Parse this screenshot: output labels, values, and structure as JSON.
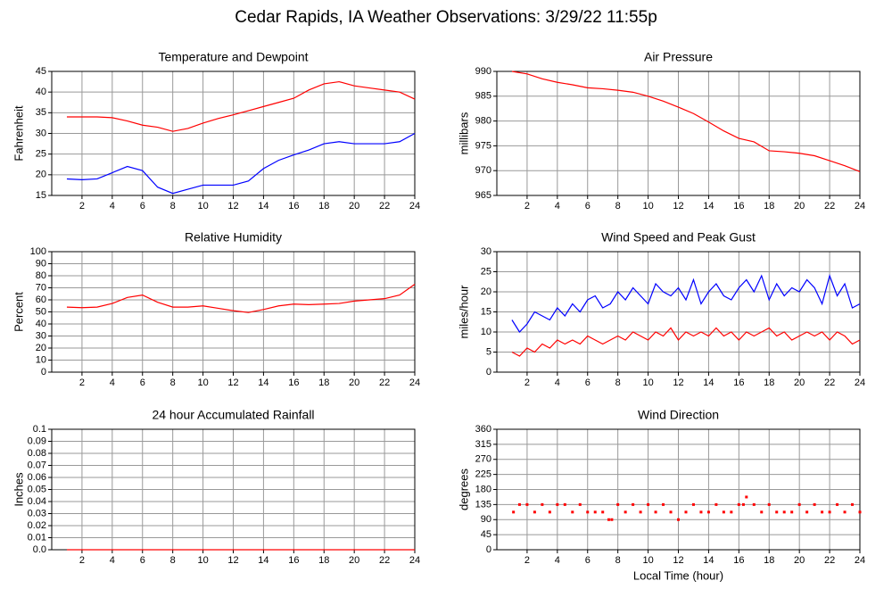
{
  "title": "Cedar Rapids, IA Weather Observations: 3/29/22 11:55p",
  "chart_data": [
    {
      "type": "line",
      "title": "Temperature and Dewpoint",
      "ylabel": "Fahrenheit",
      "x": [
        1,
        2,
        3,
        4,
        5,
        6,
        7,
        8,
        9,
        10,
        11,
        12,
        13,
        14,
        15,
        16,
        17,
        18,
        19,
        20,
        21,
        22,
        23,
        24
      ],
      "series": [
        {
          "color": "#ff0000",
          "values": [
            34,
            34,
            34,
            33.8,
            33,
            32,
            31.5,
            30.5,
            31.2,
            32.5,
            33.6,
            34.5,
            35.5,
            36.5,
            37.5,
            38.5,
            40.5,
            42,
            42.5,
            41.5,
            41,
            40.5,
            40,
            38.3
          ]
        },
        {
          "color": "#0000ff",
          "values": [
            19,
            18.8,
            19,
            20.5,
            22,
            21,
            17,
            15.5,
            16.5,
            17.5,
            17.5,
            17.5,
            18.5,
            21.5,
            23.5,
            24.8,
            26,
            27.5,
            28,
            27.5,
            27.5,
            27.5,
            28,
            30
          ]
        }
      ],
      "xlim": [
        0,
        24
      ],
      "xticks": [
        2,
        4,
        6,
        8,
        10,
        12,
        14,
        16,
        18,
        20,
        22,
        24
      ],
      "ylim": [
        15,
        45
      ],
      "yticks": [
        15,
        20,
        25,
        30,
        35,
        40,
        45
      ],
      "grid": true
    },
    {
      "type": "line",
      "title": "Air Pressure",
      "ylabel": "millibars",
      "x": [
        1,
        2,
        3,
        4,
        5,
        6,
        7,
        8,
        9,
        10,
        11,
        12,
        13,
        14,
        15,
        16,
        17,
        18,
        19,
        20,
        21,
        22,
        23,
        24
      ],
      "series": [
        {
          "color": "#ff0000",
          "values": [
            990,
            989.5,
            988.5,
            987.8,
            987.3,
            986.7,
            986.5,
            986.2,
            985.8,
            985,
            984,
            982.8,
            981.5,
            979.8,
            978,
            976.5,
            975.8,
            974,
            973.8,
            973.5,
            973,
            972,
            971,
            969.8
          ]
        }
      ],
      "xlim": [
        0,
        24
      ],
      "xticks": [
        2,
        4,
        6,
        8,
        10,
        12,
        14,
        16,
        18,
        20,
        22,
        24
      ],
      "ylim": [
        965,
        990
      ],
      "yticks": [
        965,
        970,
        975,
        980,
        985,
        990
      ],
      "grid": true
    },
    {
      "type": "line",
      "title": "Relative Humidity",
      "ylabel": "Percent",
      "x": [
        1,
        2,
        3,
        4,
        5,
        6,
        7,
        8,
        9,
        10,
        11,
        12,
        13,
        14,
        15,
        16,
        17,
        18,
        19,
        20,
        21,
        22,
        23,
        24
      ],
      "series": [
        {
          "color": "#ff0000",
          "values": [
            54,
            53.5,
            54,
            57,
            62,
            64,
            58,
            54,
            54,
            55,
            53,
            51,
            49.5,
            52,
            55,
            56.5,
            56,
            56.5,
            57,
            59,
            60,
            61,
            64,
            73
          ]
        }
      ],
      "xlim": [
        0,
        24
      ],
      "xticks": [
        2,
        4,
        6,
        8,
        10,
        12,
        14,
        16,
        18,
        20,
        22,
        24
      ],
      "ylim": [
        0,
        100
      ],
      "yticks": [
        0,
        10,
        20,
        30,
        40,
        50,
        60,
        70,
        80,
        90,
        100
      ],
      "grid": true
    },
    {
      "type": "line",
      "title": "Wind Speed and Peak Gust",
      "ylabel": "miles/hour",
      "x": [
        1,
        1.5,
        2,
        2.5,
        3,
        3.5,
        4,
        4.5,
        5,
        5.5,
        6,
        6.5,
        7,
        7.5,
        8,
        8.5,
        9,
        9.5,
        10,
        10.5,
        11,
        11.5,
        12,
        12.5,
        13,
        13.5,
        14,
        14.5,
        15,
        15.5,
        16,
        16.5,
        17,
        17.5,
        18,
        18.5,
        19,
        19.5,
        20,
        20.5,
        21,
        21.5,
        22,
        22.5,
        23,
        23.5,
        24
      ],
      "series": [
        {
          "color": "#0000ff",
          "values": [
            13,
            10,
            12,
            15,
            14,
            13,
            16,
            14,
            17,
            15,
            18,
            19,
            16,
            17,
            20,
            18,
            21,
            19,
            17,
            22,
            20,
            19,
            21,
            18,
            23,
            17,
            20,
            22,
            19,
            18,
            21,
            23,
            20,
            24,
            18,
            22,
            19,
            21,
            20,
            23,
            21,
            17,
            24,
            19,
            22,
            16,
            17
          ]
        },
        {
          "color": "#ff0000",
          "values": [
            5,
            4,
            6,
            5,
            7,
            6,
            8,
            7,
            8,
            7,
            9,
            8,
            7,
            8,
            9,
            8,
            10,
            9,
            8,
            10,
            9,
            11,
            8,
            10,
            9,
            10,
            9,
            11,
            9,
            10,
            8,
            10,
            9,
            10,
            11,
            9,
            10,
            8,
            9,
            10,
            9,
            10,
            8,
            10,
            9,
            7,
            8
          ]
        }
      ],
      "xlim": [
        0,
        24
      ],
      "xticks": [
        2,
        4,
        6,
        8,
        10,
        12,
        14,
        16,
        18,
        20,
        22,
        24
      ],
      "ylim": [
        0,
        30
      ],
      "yticks": [
        0,
        5,
        10,
        15,
        20,
        25,
        30
      ],
      "grid": true
    },
    {
      "type": "line",
      "title": "24 hour Accumulated Rainfall",
      "ylabel": "Inches",
      "x": [
        1,
        24
      ],
      "series": [
        {
          "color": "#ff0000",
          "values": [
            0,
            0
          ]
        }
      ],
      "xlim": [
        0,
        24
      ],
      "xticks": [
        2,
        4,
        6,
        8,
        10,
        12,
        14,
        16,
        18,
        20,
        22,
        24
      ],
      "ylim": [
        0,
        0.1
      ],
      "yticks": [
        {
          "value": 0,
          "label": "0.0"
        },
        0.01,
        0.02,
        0.03,
        0.04,
        0.05,
        0.06,
        0.07,
        0.08,
        0.09,
        0.1
      ],
      "grid": true
    },
    {
      "type": "scatter",
      "title": "Wind Direction",
      "ylabel": "degrees",
      "xlabel": "Local Time (hour)",
      "x": [
        1.1,
        1.5,
        2,
        2.5,
        3,
        3.5,
        4,
        4.5,
        5,
        5.5,
        6,
        6.5,
        7,
        7.4,
        7.6,
        8,
        8.5,
        9,
        9.5,
        10,
        10.5,
        11,
        11.5,
        12,
        12.5,
        13,
        13.5,
        14,
        14.5,
        15,
        15.5,
        16,
        16.3,
        16.5,
        17,
        17.5,
        18,
        18.5,
        19,
        19.5,
        20,
        20.5,
        21,
        21.5,
        22,
        22.5,
        23,
        23.5,
        24
      ],
      "series": [
        {
          "color": "#ff0000",
          "values": [
            112.5,
            135,
            135,
            112.5,
            135,
            112.5,
            135,
            135,
            112.5,
            135,
            112.5,
            112.5,
            112.5,
            90,
            90,
            135,
            112.5,
            135,
            112.5,
            135,
            112.5,
            135,
            112.5,
            90,
            112.5,
            135,
            112.5,
            112.5,
            135,
            112.5,
            112.5,
            135,
            135,
            157.5,
            135,
            112.5,
            135,
            112.5,
            112.5,
            112.5,
            135,
            112.5,
            135,
            112.5,
            112.5,
            135,
            112.5,
            135,
            112.5
          ]
        }
      ],
      "xlim": [
        0,
        24
      ],
      "xticks": [
        2,
        4,
        6,
        8,
        10,
        12,
        14,
        16,
        18,
        20,
        22,
        24
      ],
      "ylim": [
        0,
        360
      ],
      "yticks": [
        0,
        45,
        90,
        135,
        180,
        225,
        270,
        315,
        360
      ],
      "grid": true
    }
  ]
}
